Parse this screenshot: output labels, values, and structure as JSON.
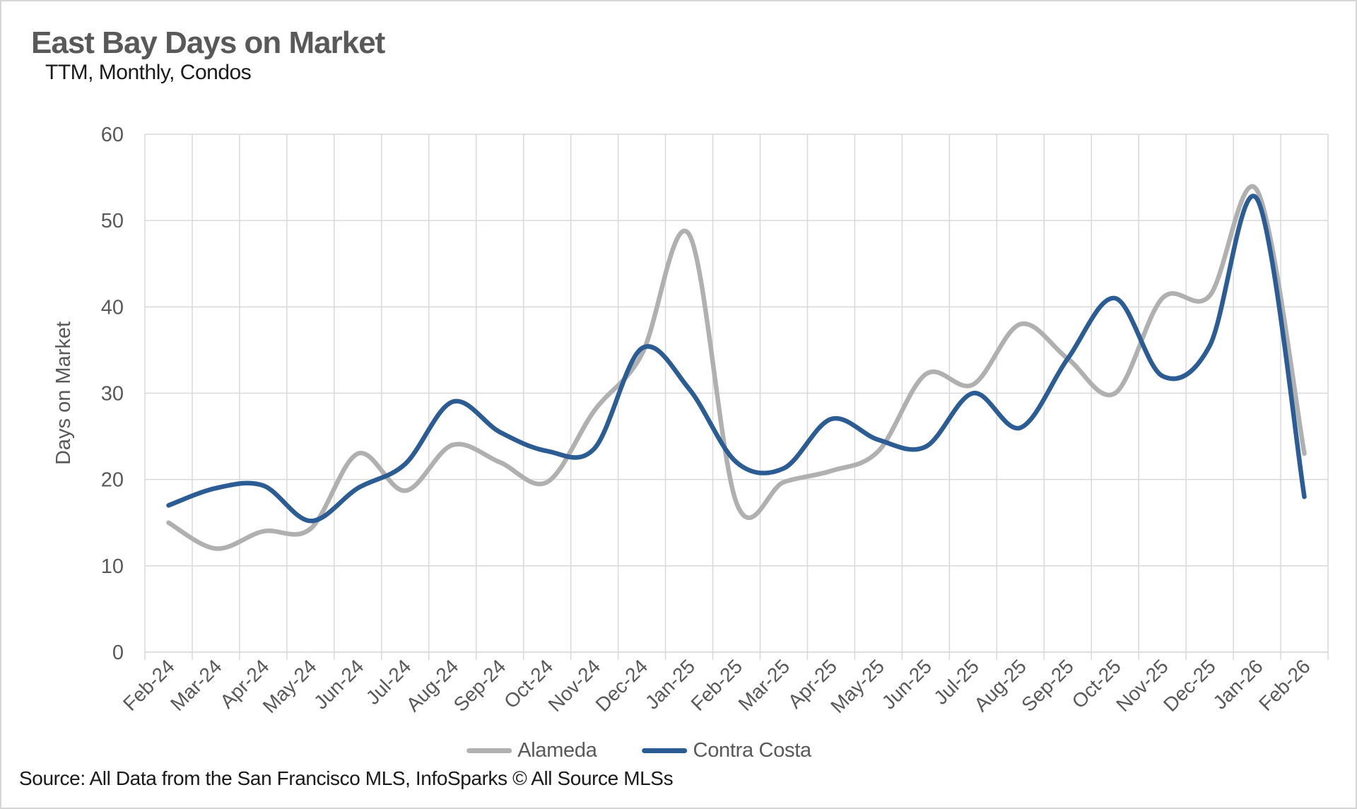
{
  "title": "East Bay Days on Market",
  "subtitle": "TTM, Monthly, Condos",
  "source": "Source: All Data from the San Francisco MLS, InfoSparks © All Source MLSs",
  "colors": {
    "alameda": "#b0b0b0",
    "contra_costa": "#2b5d94",
    "gridline": "#d9d9d9",
    "axis_text": "#595959",
    "title_text": "#595959",
    "body_text": "#1a1a1a",
    "background": "#ffffff"
  },
  "legend": {
    "items": [
      {
        "label": "Alameda",
        "color": "#b0b0b0"
      },
      {
        "label": "Contra Costa",
        "color": "#2b5d94"
      }
    ]
  },
  "chart_data": {
    "type": "line",
    "title": "East Bay Days on Market",
    "subtitle": "TTM, Monthly, Condos",
    "xlabel": "",
    "ylabel": "Days on Market",
    "ylim": [
      0,
      60
    ],
    "yticks": [
      0,
      10,
      20,
      30,
      40,
      50,
      60
    ],
    "grid": true,
    "smooth_lines": true,
    "legend_position": "bottom",
    "categories": [
      "Feb-24",
      "Mar-24",
      "Apr-24",
      "May-24",
      "Jun-24",
      "Jul-24",
      "Aug-24",
      "Sep-24",
      "Oct-24",
      "Nov-24",
      "Dec-24",
      "Jan-25",
      "Feb-25",
      "Mar-25",
      "Apr-25",
      "May-25",
      "Jun-25",
      "Jul-25",
      "Aug-25",
      "Sep-25",
      "Oct-25",
      "Nov-25",
      "Dec-25",
      "Jan-26",
      "Feb-26"
    ],
    "series": [
      {
        "name": "Alameda",
        "color": "#b0b0b0",
        "values": [
          15,
          12,
          14,
          14.3,
          23,
          18.7,
          24,
          22,
          19.7,
          28,
          34.5,
          48.4,
          17.3,
          19.7,
          21,
          23.3,
          32.2,
          31,
          38,
          34,
          30,
          41,
          41.3,
          53.5,
          23
        ]
      },
      {
        "name": "Contra Costa",
        "color": "#2b5d94",
        "values": [
          17,
          19,
          19.3,
          15.2,
          19,
          21.8,
          29,
          25.5,
          23.3,
          23.6,
          35.2,
          30.5,
          22,
          21.3,
          27,
          24.6,
          23.8,
          30,
          26,
          34,
          41,
          32,
          35.5,
          52.5,
          18
        ]
      }
    ]
  }
}
